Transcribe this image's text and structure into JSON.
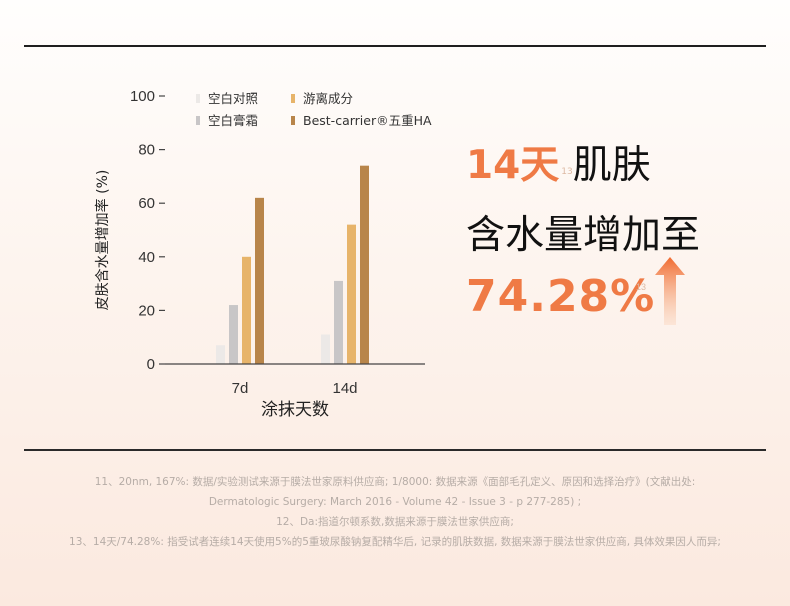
{
  "headline": {
    "line1_accent": "14天",
    "line1_sup": "13",
    "line1_rest": "肌肤",
    "line2": "含水量增加至",
    "value": "74.28%",
    "value_sup": "13"
  },
  "chart_data": {
    "type": "bar",
    "categories": [
      "7d",
      "14d"
    ],
    "series": [
      {
        "name": "空白对照",
        "color": "#ece9e7",
        "values": [
          7,
          11
        ]
      },
      {
        "name": "空白膏霜",
        "color": "#c8c6c7",
        "values": [
          22,
          31
        ]
      },
      {
        "name": "游离成分",
        "color": "#e7b46a",
        "values": [
          40,
          52
        ]
      },
      {
        "name": "Best-carrier®五重HA",
        "color": "#b8854a",
        "values": [
          62,
          74
        ]
      }
    ],
    "xlabel": "涂抹天数",
    "ylabel": "皮肤含水量增加率 (%)",
    "ylim": [
      0,
      100
    ],
    "yticks": [
      "0",
      "20",
      "40",
      "60",
      "80",
      "100"
    ],
    "grid": false,
    "legend_position": "top-left"
  },
  "footnotes": [
    "11、20nm, 167%: 数据/实验测试来源于膜法世家原料供应商; 1/8000: 数据来源《面部毛孔定义、原因和选择治疗》(文献出处:",
    "Dermatologic Surgery: March 2016 - Volume 42 - Issue 3 - p 277-285) ;",
    "12、Da:指道尔顿系数,数据来源于膜法世家供应商;",
    "13、14天/74.28%: 指受试者连续14天使用5%的5重玻尿酸钠复配精华后, 记录的肌肤数据, 数据来源于膜法世家供应商, 具体效果因人而异;"
  ],
  "colors": {
    "accent": "#ef7a45",
    "arrow": "#f07a3c"
  }
}
